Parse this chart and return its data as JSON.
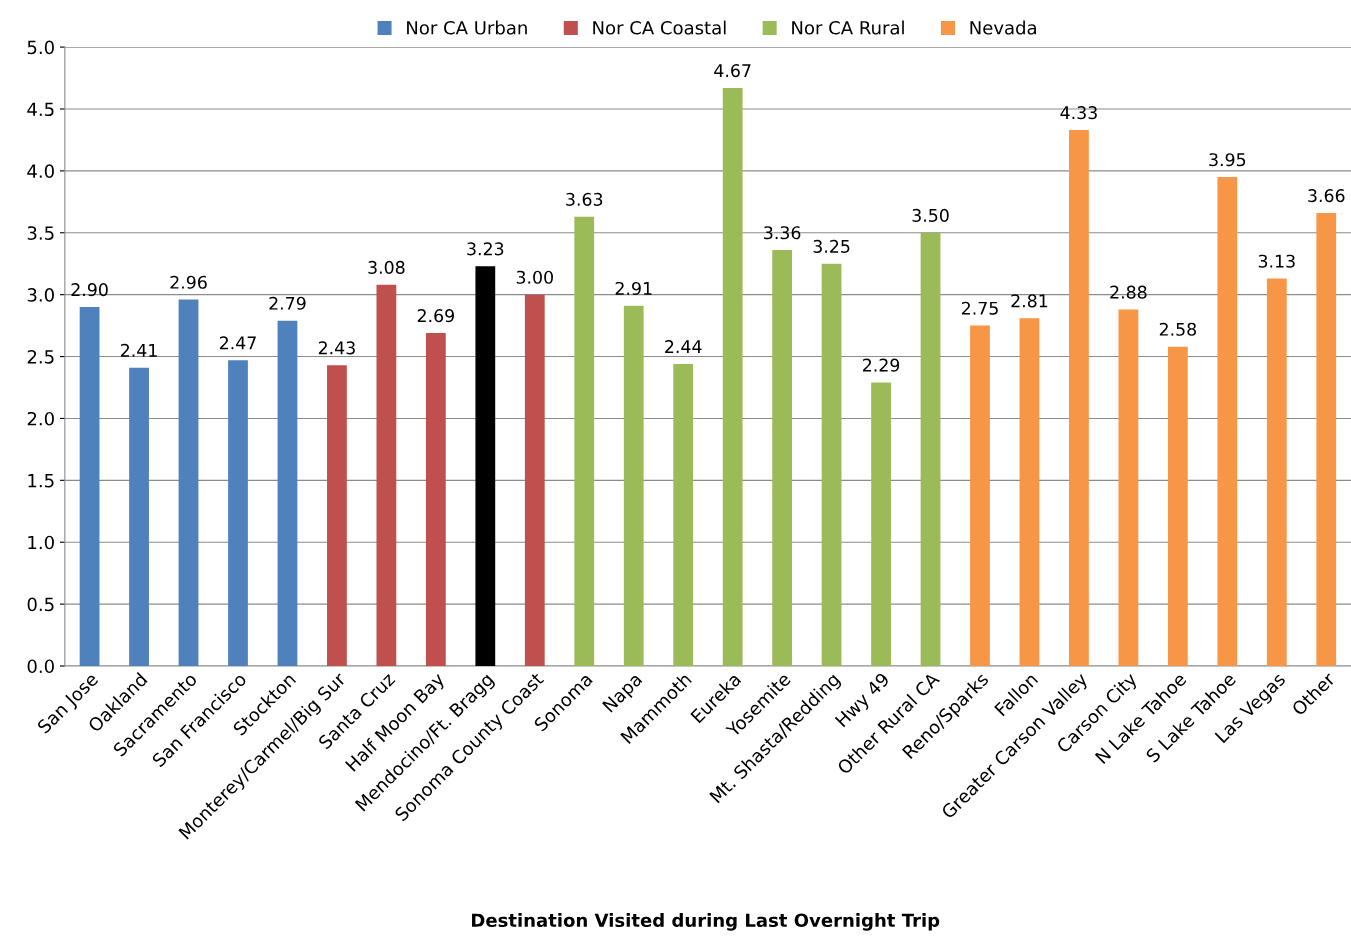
{
  "chart_data": {
    "type": "bar",
    "xlabel": "Destination Visited during Last Overnight Trip",
    "categories": [
      "San Jose",
      "Oakland",
      "Sacramento",
      "San Francisco",
      "Stockton",
      "Monterey/Carmel/Big Sur",
      "Santa Cruz",
      "Half Moon Bay",
      "Mendocino/Ft. Bragg",
      "Sonoma County Coast",
      "Sonoma",
      "Napa",
      "Mammoth",
      "Eureka",
      "Yosemite",
      "Mt. Shasta/Redding",
      "Hwy 49",
      "Other Rural CA",
      "Reno/Sparks",
      "Fallon",
      "Greater Carson Valley",
      "Carson City",
      "N Lake Tahoe",
      "S Lake Tahoe",
      "Las Vegas",
      "Other"
    ],
    "series": [
      {
        "name": "Nor CA Urban",
        "color": "#4f81bd",
        "values": [
          2.9,
          2.41,
          2.96,
          2.47,
          2.79,
          null,
          null,
          null,
          null,
          null,
          null,
          null,
          null,
          null,
          null,
          null,
          null,
          null,
          null,
          null,
          null,
          null,
          null,
          null,
          null,
          null
        ],
        "value_labels": [
          "2.90",
          "2.41",
          "2.96",
          "2.47",
          "2.79",
          null,
          null,
          null,
          null,
          null,
          null,
          null,
          null,
          null,
          null,
          null,
          null,
          null,
          null,
          null,
          null,
          null,
          null,
          null,
          null,
          null
        ]
      },
      {
        "name": "Nor CA Coastal",
        "color": "#c0504d",
        "colors": [
          null,
          null,
          null,
          null,
          null,
          "#c0504d",
          "#c0504d",
          "#c0504d",
          "#000000",
          "#c0504d",
          null,
          null,
          null,
          null,
          null,
          null,
          null,
          null,
          null,
          null,
          null,
          null,
          null,
          null,
          null,
          null
        ],
        "values": [
          null,
          null,
          null,
          null,
          null,
          2.43,
          3.08,
          2.69,
          3.23,
          3.0,
          null,
          null,
          null,
          null,
          null,
          null,
          null,
          null,
          null,
          null,
          null,
          null,
          null,
          null,
          null,
          null
        ],
        "value_labels": [
          null,
          null,
          null,
          null,
          null,
          "2.43",
          "3.08",
          "2.69",
          "3.23",
          "3.00",
          null,
          null,
          null,
          null,
          null,
          null,
          null,
          null,
          null,
          null,
          null,
          null,
          null,
          null,
          null,
          null
        ]
      },
      {
        "name": "Nor CA Rural",
        "color": "#9bbb59",
        "values": [
          null,
          null,
          null,
          null,
          null,
          null,
          null,
          null,
          null,
          null,
          3.63,
          2.91,
          2.44,
          4.67,
          3.36,
          3.25,
          2.29,
          3.5,
          null,
          null,
          null,
          null,
          null,
          null,
          null,
          null
        ],
        "value_labels": [
          null,
          null,
          null,
          null,
          null,
          null,
          null,
          null,
          null,
          null,
          "3.63",
          "2.91",
          "2.44",
          "4.67",
          "3.36",
          "3.25",
          "2.29",
          "3.50",
          null,
          null,
          null,
          null,
          null,
          null,
          null,
          null
        ]
      },
      {
        "name": "Nevada",
        "color": "#f79646",
        "values": [
          null,
          null,
          null,
          null,
          null,
          null,
          null,
          null,
          null,
          null,
          null,
          null,
          null,
          null,
          null,
          null,
          null,
          null,
          2.75,
          2.81,
          4.33,
          2.88,
          2.58,
          3.95,
          3.13,
          3.66
        ],
        "value_labels": [
          null,
          null,
          null,
          null,
          null,
          null,
          null,
          null,
          null,
          null,
          null,
          null,
          null,
          null,
          null,
          null,
          null,
          null,
          "2.75",
          "2.81",
          "4.33",
          "2.88",
          "2.58",
          "3.95",
          "3.13",
          "3.66"
        ]
      }
    ],
    "ylim": [
      0,
      5
    ],
    "yticks": [
      {
        "value": 0,
        "label": "0.0"
      },
      {
        "value": 0.5,
        "label": "0.5"
      },
      {
        "value": 1,
        "label": "1.0"
      },
      {
        "value": 1.5,
        "label": "1.5"
      },
      {
        "value": 2,
        "label": "2.0"
      },
      {
        "value": 2.5,
        "label": "2.5"
      },
      {
        "value": 3,
        "label": "3.0"
      },
      {
        "value": 3.5,
        "label": "3.5"
      },
      {
        "value": 4,
        "label": "4.0"
      },
      {
        "value": 4.5,
        "label": "4.5"
      },
      {
        "value": 5,
        "label": "5.0"
      }
    ],
    "grid": "y",
    "legend": "top"
  }
}
